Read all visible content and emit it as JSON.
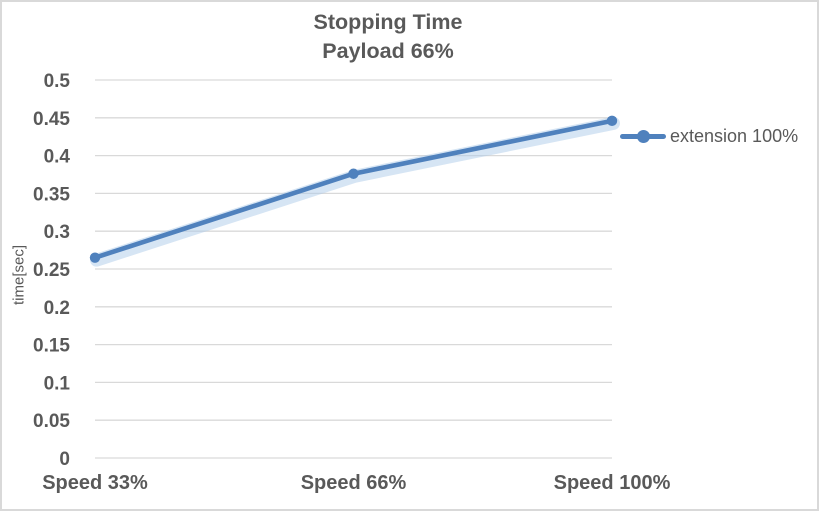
{
  "chart_data": {
    "type": "line",
    "title": "Stopping Time",
    "subtitle": "Payload 66%",
    "categories": [
      "Speed 33%",
      "Speed 66%",
      "Speed 100%"
    ],
    "series": [
      {
        "name": "extension 100%",
        "values": [
          0.265,
          0.376,
          0.446
        ],
        "color": "#4F81BD",
        "glow_color": "#AECBEA",
        "marker": "circle"
      }
    ],
    "xlabel": "",
    "ylabel": "time[sec]",
    "ylim": [
      0,
      0.5
    ],
    "ytick_step": 0.05,
    "ytick_labels": [
      "0",
      "0.05",
      "0.1",
      "0.15",
      "0.2",
      "0.25",
      "0.3",
      "0.35",
      "0.4",
      "0.45",
      "0.5"
    ],
    "grid": "horizontal",
    "legend_position": "right",
    "colors": {
      "text": "#595959",
      "gridline": "#D9D9D9",
      "border": "#D9D9D9",
      "background": "#FFFFFF"
    }
  }
}
